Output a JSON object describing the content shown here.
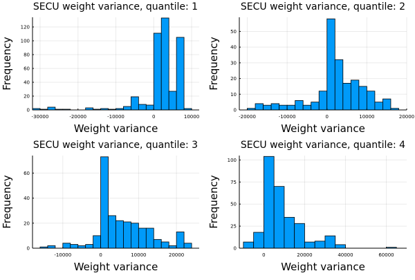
{
  "colors": {
    "bar": "#009AF9",
    "background": "#FFFFFF"
  },
  "chart_data": [
    {
      "type": "bar",
      "title": "SECU weight variance, quantile: 1",
      "xlabel": "Weight variance",
      "ylabel": "Frequency",
      "grid": true,
      "legend": "none",
      "xlim": [
        -32000,
        12000
      ],
      "ylim": [
        0,
        134
      ],
      "xticks": [
        -30000,
        -20000,
        -10000,
        0,
        10000
      ],
      "xtick_labels": [
        "-30000",
        "-20000",
        "-10000",
        "0",
        "10000"
      ],
      "yticks": [
        0,
        20,
        40,
        60,
        80,
        100,
        120
      ],
      "ytick_labels": [
        "0",
        "20",
        "40",
        "60",
        "80",
        "100",
        "120"
      ],
      "bins": [
        {
          "start": -32000,
          "end": -30000,
          "count": 2
        },
        {
          "start": -30000,
          "end": -28000,
          "count": 1
        },
        {
          "start": -28000,
          "end": -26000,
          "count": 4
        },
        {
          "start": -26000,
          "end": -24000,
          "count": 1
        },
        {
          "start": -24000,
          "end": -22000,
          "count": 1
        },
        {
          "start": -22000,
          "end": -20000,
          "count": 0
        },
        {
          "start": -20000,
          "end": -18000,
          "count": 0
        },
        {
          "start": -18000,
          "end": -16000,
          "count": 3
        },
        {
          "start": -16000,
          "end": -14000,
          "count": 1
        },
        {
          "start": -14000,
          "end": -12000,
          "count": 2
        },
        {
          "start": -12000,
          "end": -10000,
          "count": 1
        },
        {
          "start": -10000,
          "end": -8000,
          "count": 2
        },
        {
          "start": -8000,
          "end": -6000,
          "count": 5
        },
        {
          "start": -6000,
          "end": -4000,
          "count": 19
        },
        {
          "start": -4000,
          "end": -2000,
          "count": 8
        },
        {
          "start": -2000,
          "end": 0,
          "count": 7
        },
        {
          "start": 0,
          "end": 2000,
          "count": 111
        },
        {
          "start": 2000,
          "end": 4000,
          "count": 133
        },
        {
          "start": 4000,
          "end": 6000,
          "count": 27
        },
        {
          "start": 6000,
          "end": 8000,
          "count": 105
        },
        {
          "start": 8000,
          "end": 10000,
          "count": 2
        }
      ]
    },
    {
      "type": "bar",
      "title": "SECU weight variance, quantile: 2",
      "xlabel": "Weight variance",
      "ylabel": "Frequency",
      "grid": true,
      "legend": "none",
      "xlim": [
        -22000,
        20000
      ],
      "ylim": [
        0,
        59
      ],
      "xticks": [
        -20000,
        -10000,
        0,
        10000,
        20000
      ],
      "xtick_labels": [
        "-20000",
        "-10000",
        "0",
        "10000",
        "20000"
      ],
      "yticks": [
        0,
        10,
        20,
        30,
        40,
        50
      ],
      "ytick_labels": [
        "0",
        "10",
        "20",
        "30",
        "40",
        "50"
      ],
      "bins": [
        {
          "start": -20000,
          "end": -18000,
          "count": 1
        },
        {
          "start": -18000,
          "end": -16000,
          "count": 4
        },
        {
          "start": -16000,
          "end": -14000,
          "count": 3
        },
        {
          "start": -14000,
          "end": -12000,
          "count": 4
        },
        {
          "start": -12000,
          "end": -10000,
          "count": 3
        },
        {
          "start": -10000,
          "end": -8000,
          "count": 3
        },
        {
          "start": -8000,
          "end": -6000,
          "count": 6
        },
        {
          "start": -6000,
          "end": -4000,
          "count": 3
        },
        {
          "start": -4000,
          "end": -2000,
          "count": 5
        },
        {
          "start": -2000,
          "end": 0,
          "count": 12
        },
        {
          "start": 0,
          "end": 2000,
          "count": 58
        },
        {
          "start": 2000,
          "end": 4000,
          "count": 32
        },
        {
          "start": 4000,
          "end": 6000,
          "count": 17
        },
        {
          "start": 6000,
          "end": 8000,
          "count": 19
        },
        {
          "start": 8000,
          "end": 10000,
          "count": 15
        },
        {
          "start": 10000,
          "end": 12000,
          "count": 12
        },
        {
          "start": 12000,
          "end": 14000,
          "count": 5
        },
        {
          "start": 14000,
          "end": 16000,
          "count": 7
        },
        {
          "start": 16000,
          "end": 18000,
          "count": 1
        }
      ]
    },
    {
      "type": "bar",
      "title": "SECU weight variance, quantile: 3",
      "xlabel": "Weight variance",
      "ylabel": "Frequency",
      "grid": true,
      "legend": "none",
      "xlim": [
        -18000,
        26000
      ],
      "ylim": [
        0,
        74
      ],
      "xticks": [
        -10000,
        0,
        10000,
        20000
      ],
      "xtick_labels": [
        "-10000",
        "0",
        "10000",
        "20000"
      ],
      "yticks": [
        0,
        20,
        40,
        60
      ],
      "ytick_labels": [
        "0",
        "20",
        "40",
        "60"
      ],
      "bins": [
        {
          "start": -16000,
          "end": -14000,
          "count": 1
        },
        {
          "start": -14000,
          "end": -12000,
          "count": 2
        },
        {
          "start": -12000,
          "end": -10000,
          "count": 0
        },
        {
          "start": -10000,
          "end": -8000,
          "count": 4
        },
        {
          "start": -8000,
          "end": -6000,
          "count": 3
        },
        {
          "start": -6000,
          "end": -4000,
          "count": 2
        },
        {
          "start": -4000,
          "end": -2000,
          "count": 3
        },
        {
          "start": -2000,
          "end": 0,
          "count": 10
        },
        {
          "start": 0,
          "end": 2000,
          "count": 73
        },
        {
          "start": 2000,
          "end": 4000,
          "count": 26
        },
        {
          "start": 4000,
          "end": 6000,
          "count": 22
        },
        {
          "start": 6000,
          "end": 8000,
          "count": 21
        },
        {
          "start": 8000,
          "end": 10000,
          "count": 20
        },
        {
          "start": 10000,
          "end": 12000,
          "count": 16
        },
        {
          "start": 12000,
          "end": 14000,
          "count": 16
        },
        {
          "start": 14000,
          "end": 16000,
          "count": 7
        },
        {
          "start": 16000,
          "end": 18000,
          "count": 5
        },
        {
          "start": 18000,
          "end": 20000,
          "count": 2
        },
        {
          "start": 20000,
          "end": 22000,
          "count": 13
        },
        {
          "start": 22000,
          "end": 24000,
          "count": 4
        }
      ]
    },
    {
      "type": "bar",
      "title": "SECU weight variance, quantile: 4",
      "xlabel": "Weight variance",
      "ylabel": "Frequency",
      "grid": true,
      "legend": "none",
      "xlim": [
        -12000,
        70000
      ],
      "ylim": [
        0,
        105
      ],
      "xticks": [
        0,
        20000,
        40000,
        60000
      ],
      "xtick_labels": [
        "0",
        "20000",
        "40000",
        "60000"
      ],
      "yticks": [
        0,
        25,
        50,
        75,
        100
      ],
      "ytick_labels": [
        "0",
        "25",
        "50",
        "75",
        "100"
      ],
      "bins": [
        {
          "start": -10000,
          "end": -5000,
          "count": 7
        },
        {
          "start": -5000,
          "end": 0,
          "count": 18
        },
        {
          "start": 0,
          "end": 5000,
          "count": 104
        },
        {
          "start": 5000,
          "end": 10000,
          "count": 70
        },
        {
          "start": 10000,
          "end": 15000,
          "count": 35
        },
        {
          "start": 15000,
          "end": 20000,
          "count": 28
        },
        {
          "start": 20000,
          "end": 25000,
          "count": 7
        },
        {
          "start": 25000,
          "end": 30000,
          "count": 8
        },
        {
          "start": 30000,
          "end": 35000,
          "count": 14
        },
        {
          "start": 35000,
          "end": 40000,
          "count": 4
        },
        {
          "start": 40000,
          "end": 45000,
          "count": 0
        },
        {
          "start": 45000,
          "end": 50000,
          "count": 0
        },
        {
          "start": 50000,
          "end": 55000,
          "count": 0
        },
        {
          "start": 55000,
          "end": 60000,
          "count": 0
        },
        {
          "start": 60000,
          "end": 65000,
          "count": 1
        }
      ]
    }
  ]
}
